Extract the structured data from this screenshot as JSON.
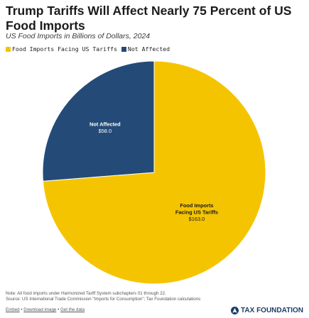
{
  "header": {
    "title": "Trump Tariffs Will Affect Nearly 75 Percent of US Food Imports",
    "subtitle": "US Food Imports in Billions of Dollars, 2024"
  },
  "legend": {
    "items": [
      {
        "label": "Food Imports Facing US Tariffs",
        "color": "#f5c400"
      },
      {
        "label": "Not Affected",
        "color": "#244b78"
      }
    ]
  },
  "chart_data": {
    "type": "pie",
    "title": "Trump Tariffs Will Affect Nearly 75 Percent of US Food Imports",
    "subtitle": "US Food Imports in Billions of Dollars, 2024",
    "unit": "Billions of Dollars",
    "legend_position": "top-left",
    "start": "12 o'clock",
    "direction": "clockwise",
    "slices": [
      {
        "label": "Food Imports Facing US Tariffs",
        "value": 163.0,
        "value_label": "$163.0",
        "color": "#f5c400"
      },
      {
        "label": "Not Affected",
        "value": 58.0,
        "value_label": "$58.0",
        "color": "#244b78"
      }
    ]
  },
  "footer": {
    "note": "Note: All food imports under Harmonized Tariff System subchapters 01 through 22.",
    "source": "Source: US International Trade Commission \"Imports for Consumption\"; Tax Foundation calculations",
    "links": [
      "Embed",
      "Download image",
      "Get the data"
    ],
    "separator": "•",
    "brand": "TAX FOUNDATION"
  }
}
